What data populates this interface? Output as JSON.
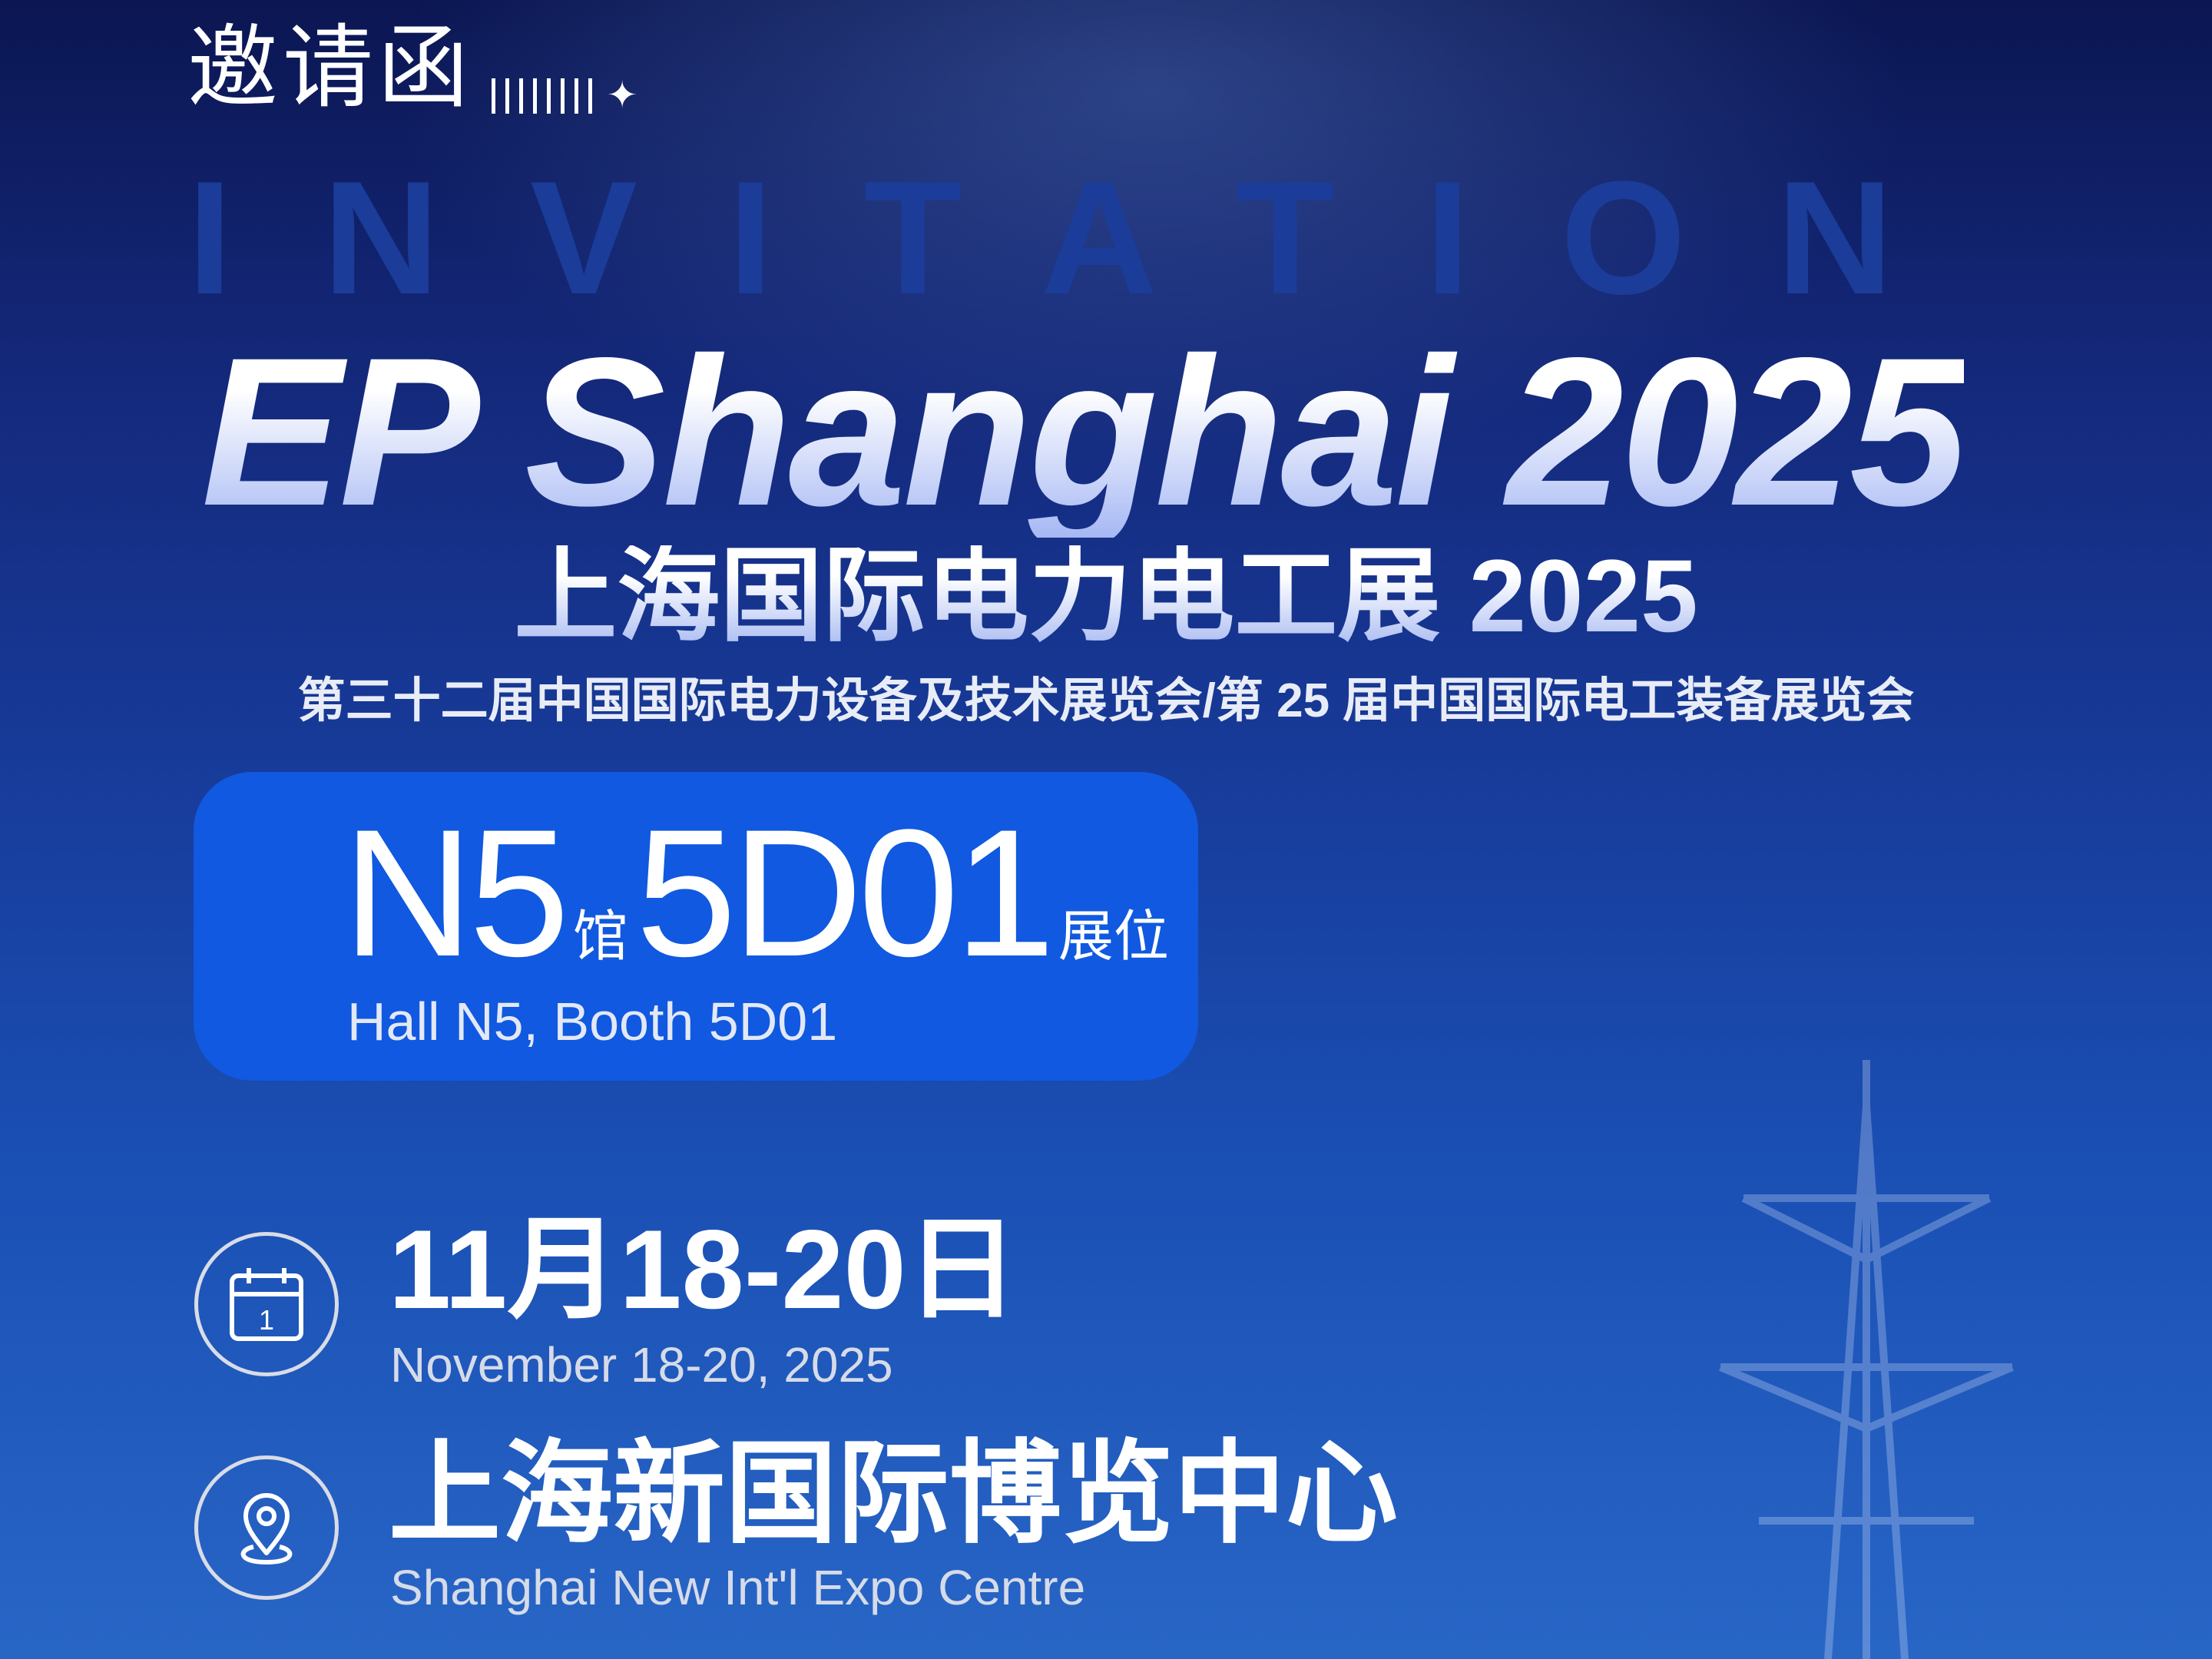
{
  "header": {
    "invite_title": "邀请函",
    "watermark": "INVITATION",
    "main_title": "EP Shanghai 2025",
    "cn_title": "上海国际电力电工展 2025",
    "subtitle": "第三十二届中国国际电力设备及技术展览会/第 25 届中国国际电工装备展览会"
  },
  "booth": {
    "hall": "N5",
    "hall_unit": "馆",
    "booth_no": "5D01",
    "booth_unit": "展位",
    "english": "Hall N5, Booth 5D01",
    "color": "#1059e0"
  },
  "date": {
    "icon": "calendar-icon",
    "calendar_day": "1",
    "cn": "11月18-20日",
    "en": "November 18-20, 2025"
  },
  "venue": {
    "icon": "location-pin-icon",
    "cn": "上海新国际博览中心",
    "en": "Shanghai New Int'l Expo Centre"
  }
}
